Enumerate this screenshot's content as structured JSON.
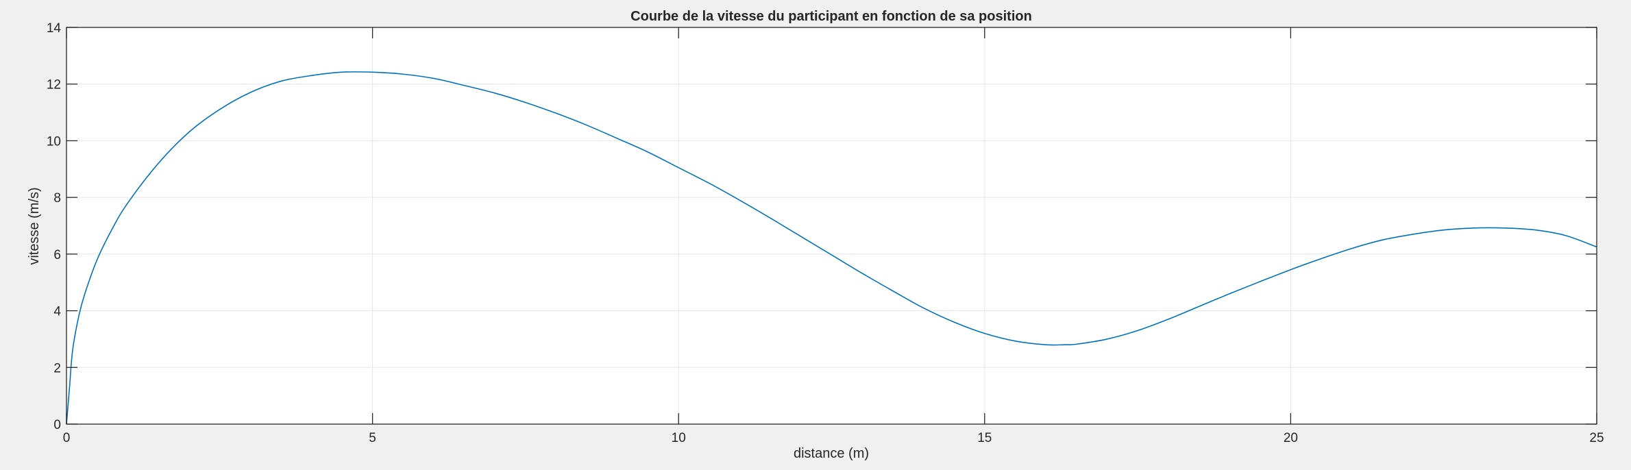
{
  "chart_data": {
    "type": "line",
    "title": "Courbe de la vitesse du participant en fonction de sa position",
    "xlabel": "distance (m)",
    "ylabel": "vitesse (m/s)",
    "xlim": [
      0,
      25
    ],
    "ylim": [
      0,
      14
    ],
    "xticks": [
      0,
      5,
      10,
      15,
      20,
      25
    ],
    "yticks": [
      0,
      2,
      4,
      6,
      8,
      10,
      12,
      14
    ],
    "grid": true,
    "legend": "none",
    "series": [
      {
        "color": "#0072BD",
        "x": [
          0,
          0.05,
          0.1,
          0.2,
          0.3,
          0.5,
          0.75,
          1,
          1.5,
          2,
          2.5,
          3,
          3.5,
          4,
          4.5,
          5,
          5.5,
          6,
          6.5,
          7,
          7.5,
          8,
          8.5,
          9,
          9.5,
          10,
          10.5,
          11,
          11.5,
          12,
          12.5,
          13,
          13.5,
          14,
          14.5,
          15,
          15.5,
          16,
          16.3,
          16.5,
          17,
          17.5,
          18,
          18.5,
          19,
          19.5,
          20,
          20.5,
          21,
          21.5,
          22,
          22.5,
          23,
          23.5,
          24,
          24.5,
          25
        ],
        "y": [
          0,
          1.3,
          2.6,
          3.8,
          4.6,
          5.8,
          6.9,
          7.8,
          9.2,
          10.3,
          11.1,
          11.7,
          12.1,
          12.3,
          12.42,
          12.42,
          12.35,
          12.2,
          11.95,
          11.68,
          11.35,
          10.97,
          10.55,
          10.08,
          9.6,
          9.05,
          8.5,
          7.9,
          7.27,
          6.62,
          5.97,
          5.32,
          4.7,
          4.1,
          3.6,
          3.2,
          2.93,
          2.8,
          2.8,
          2.82,
          3.0,
          3.3,
          3.7,
          4.15,
          4.6,
          5.03,
          5.45,
          5.84,
          6.2,
          6.5,
          6.7,
          6.85,
          6.92,
          6.92,
          6.85,
          6.65,
          6.25
        ]
      }
    ]
  }
}
